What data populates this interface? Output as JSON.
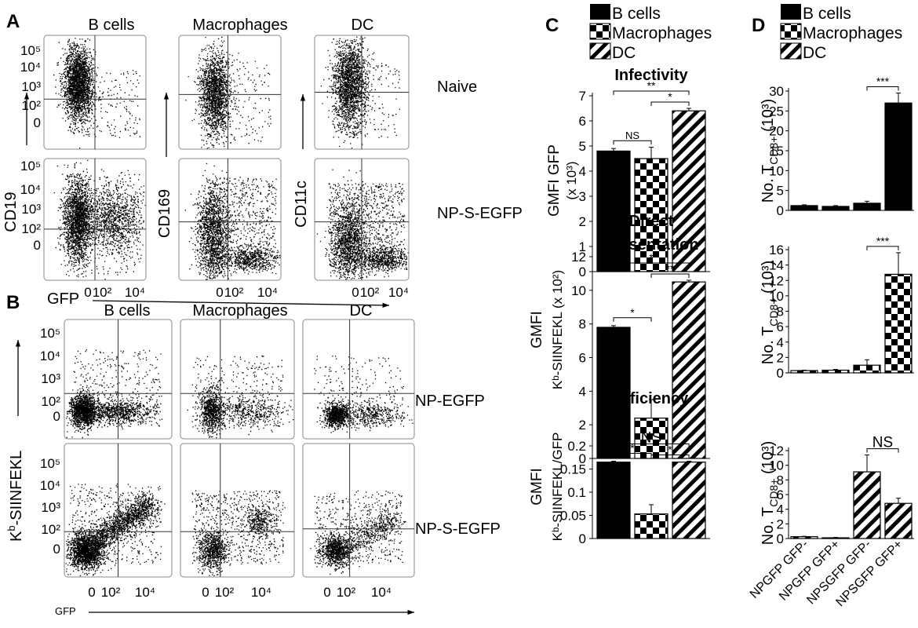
{
  "panels": {
    "A": {
      "label": "A",
      "columns": [
        "B cells",
        "Macrophages",
        "DC"
      ],
      "row_labels": [
        "Naive",
        "NP-S-EGFP"
      ],
      "y_axis_labels": [
        "CD19",
        "CD169",
        "CD11c"
      ],
      "x_axis_label": "GFP",
      "y_ticks": [
        "10⁵",
        "10⁴",
        "10³",
        "10²",
        "0"
      ],
      "x_ticks": [
        "0",
        "10²",
        "10⁴"
      ]
    },
    "B": {
      "label": "B",
      "columns": [
        "B cells",
        "Macrophages",
        "DC"
      ],
      "row_labels": [
        "NP-EGFP",
        "NP-S-EGFP"
      ],
      "y_axis_label_main": "K",
      "y_axis_label_sup": "b",
      "y_axis_label_rest": "-SIINFEKL",
      "x_axis_label": "GFP",
      "y_ticks": [
        "10⁵",
        "10⁴",
        "10³",
        "10²",
        "0"
      ],
      "x_ticks": [
        "0",
        "10²",
        "10⁴"
      ]
    },
    "C": {
      "label": "C",
      "legend": [
        "B cells",
        "Macrophages",
        "DC"
      ]
    },
    "D": {
      "label": "D",
      "legend": [
        "B cells",
        "Macrophages",
        "DC"
      ]
    }
  },
  "chart_data": [
    {
      "id": "C-infectivity",
      "type": "bar",
      "title": "Infectivity",
      "ylabel": "GMFI GFP",
      "ylabel2": "(x 10³)",
      "categories": [
        "B cells",
        "Macrophages",
        "DC"
      ],
      "values": [
        4.8,
        4.5,
        6.4
      ],
      "errors": [
        0.1,
        0.45,
        0.1
      ],
      "ylim": [
        0,
        7
      ],
      "yticks": [
        "0",
        "1",
        "2",
        "3",
        "4",
        "5",
        "6",
        "7"
      ],
      "patterns": [
        "solid",
        "checker",
        "stripe"
      ],
      "significance": [
        {
          "from": 0,
          "to": 1,
          "label": "NS"
        },
        {
          "from": 0,
          "to": 2,
          "label": "**"
        },
        {
          "from": 1,
          "to": 2,
          "label": "*"
        }
      ]
    },
    {
      "id": "C-direct-presentation",
      "type": "bar",
      "title": "Direct",
      "title2": "Presentation",
      "ylabel": "GMFI",
      "ylabel2": "Kᵇ-SIINFEKL (x 10²)",
      "categories": [
        "B cells",
        "Macrophages",
        "DC"
      ],
      "values": [
        7.8,
        2.4,
        10.5
      ],
      "errors": [
        0.1,
        1.1,
        0.1
      ],
      "ylim": [
        0,
        12
      ],
      "yticks": [
        "0",
        "2",
        "4",
        "6",
        "8",
        "10",
        "12"
      ],
      "patterns": [
        "solid",
        "checker",
        "stripe"
      ],
      "significance": [
        {
          "from": 0,
          "to": 1,
          "label": "*"
        },
        {
          "from": 0,
          "to": 2,
          "label": "*"
        },
        {
          "from": 1,
          "to": 2,
          "label": "**"
        }
      ]
    },
    {
      "id": "C-efficiency",
      "type": "bar",
      "title": "Efficiency",
      "ylabel": "GMFI",
      "ylabel2": "Kᵇ-SIINFEKL/GFP",
      "categories": [
        "B cells",
        "Macrophages",
        "DC"
      ],
      "values": [
        0.165,
        0.053,
        0.165
      ],
      "errors": [
        0.002,
        0.02,
        0.002
      ],
      "ylim": [
        0,
        0.2
      ],
      "yticks": [
        "0",
        "0.05",
        "0.1",
        "0.15",
        "0.2"
      ],
      "patterns": [
        "solid",
        "checker",
        "stripe"
      ],
      "significance": [
        {
          "from": 0,
          "to": 1,
          "label": "*"
        },
        {
          "from": 0,
          "to": 2,
          "label": "NS"
        },
        {
          "from": 1,
          "to": 2,
          "label": "*"
        }
      ]
    },
    {
      "id": "D-bcells",
      "type": "bar",
      "ylabel": "No. T",
      "ylabel_sub": "CD8+",
      "ylabel_end": " (10³)",
      "categories": [
        "NPGFP GFP-",
        "NPGFP GFP+",
        "NPSGFP GFP-",
        "NPSGFP GFP+"
      ],
      "values": [
        1.2,
        1.0,
        1.8,
        27
      ],
      "errors": [
        0.2,
        0.2,
        0.5,
        2.5
      ],
      "ylim": [
        0,
        30
      ],
      "yticks": [
        "0",
        "5",
        "10",
        "15",
        "20",
        "25",
        "30"
      ],
      "patterns": [
        "solid",
        "solid",
        "solid",
        "solid"
      ],
      "significance": [
        {
          "from": 2,
          "to": 3,
          "label": "***"
        }
      ]
    },
    {
      "id": "D-macrophages",
      "type": "bar",
      "ylabel": "No. T",
      "ylabel_sub": "CD8+",
      "ylabel_end": " (10³)",
      "categories": [
        "NPGFP GFP-",
        "NPGFP GFP+",
        "NPSGFP GFP-",
        "NPSGFP GFP+"
      ],
      "values": [
        0.3,
        0.35,
        1.0,
        12.8
      ],
      "errors": [
        0.05,
        0.1,
        0.7,
        2.8
      ],
      "ylim": [
        0,
        16
      ],
      "yticks": [
        "0",
        "2",
        "4",
        "6",
        "8",
        "10",
        "12",
        "14",
        "16"
      ],
      "patterns": [
        "checker",
        "checker",
        "checker",
        "checker"
      ],
      "significance": [
        {
          "from": 2,
          "to": 3,
          "label": "***"
        }
      ]
    },
    {
      "id": "D-dc",
      "type": "bar",
      "ylabel": "No. T",
      "ylabel_sub": "CD8+",
      "ylabel_end": " (10³)",
      "categories": [
        "NPGFP GFP-",
        "NPGFP GFP+",
        "NPSGFP GFP-",
        "NPSGFP GFP+"
      ],
      "values": [
        0.25,
        0.1,
        9.1,
        4.8
      ],
      "errors": [
        0.05,
        0.05,
        2.3,
        0.7
      ],
      "ylim": [
        0,
        12
      ],
      "yticks": [
        "0",
        "2",
        "4",
        "6",
        "8",
        "10",
        "12"
      ],
      "patterns": [
        "stripe",
        "stripe",
        "stripe",
        "stripe"
      ],
      "show_xlabels": true,
      "significance": [
        {
          "from": 2,
          "to": 3,
          "label": "NS"
        }
      ]
    }
  ]
}
